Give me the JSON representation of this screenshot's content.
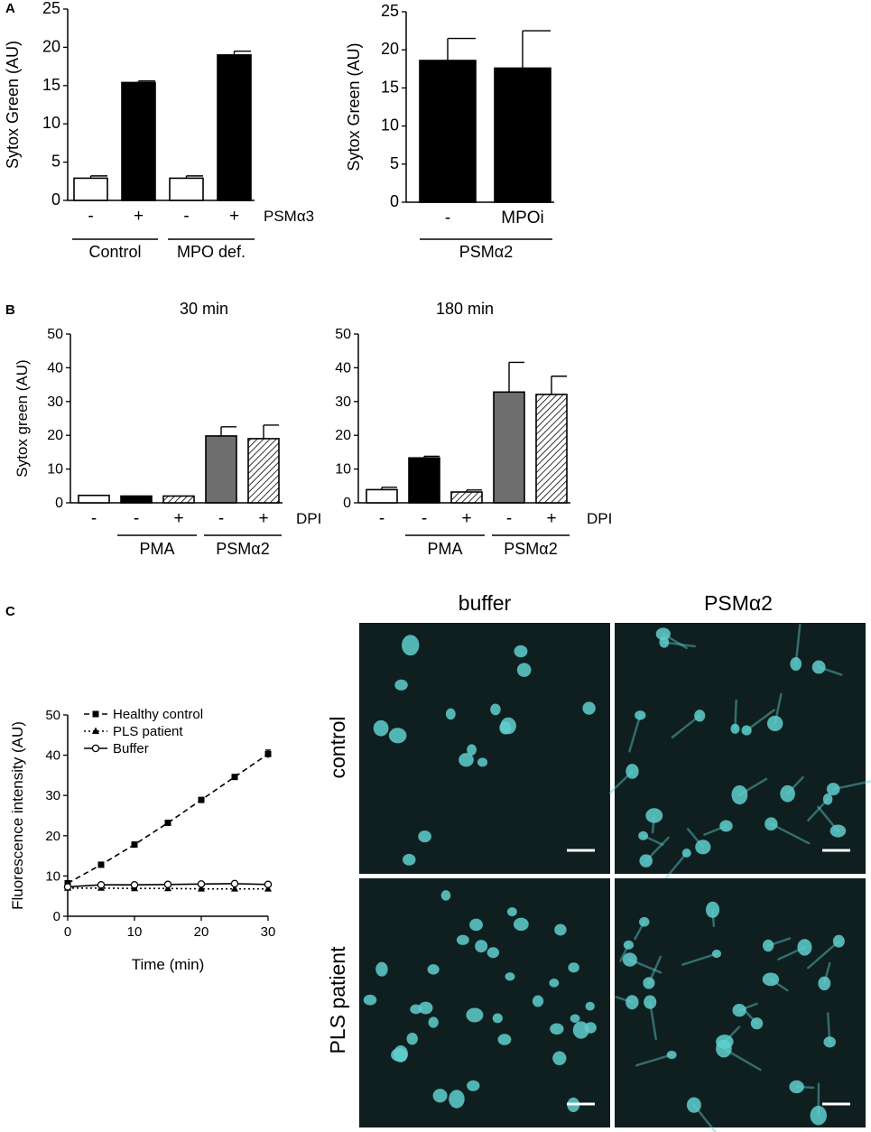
{
  "panel_letters": {
    "a": "A",
    "b": "B",
    "c": "C"
  },
  "micrograph_labels": {
    "col_buffer": "buffer",
    "col_psm": "PSMα2",
    "row_control": "control",
    "row_pls": "PLS patient"
  },
  "colors": {
    "micrograph_bg": "#0f1e1e",
    "cell": "#5fcfcf",
    "bar_white": "#ffffff",
    "bar_black": "#000000",
    "bar_gray": "#6e6e6e"
  },
  "chart_data": [
    {
      "id": "A1",
      "type": "bar",
      "ylabel": "Sytox Green (AU)",
      "ylim": [
        0,
        25
      ],
      "yticks": [
        0,
        5,
        10,
        15,
        20,
        25
      ],
      "tick_labels": [
        "-",
        "+",
        "-",
        "+"
      ],
      "row_label": "PSMα3",
      "groups": [
        "Control",
        "MPO def."
      ],
      "values": [
        2.9,
        15.4,
        2.9,
        19.0
      ],
      "errors": [
        0.3,
        0.2,
        0.3,
        0.5
      ],
      "fills": [
        "white",
        "black",
        "white",
        "black"
      ]
    },
    {
      "id": "A2",
      "type": "bar",
      "ylabel": "Sytox Green (AU)",
      "ylim": [
        0,
        25
      ],
      "yticks": [
        0,
        5,
        10,
        15,
        20,
        25
      ],
      "tick_labels": [
        "-",
        "MPOi"
      ],
      "groups": [
        "PSMα2"
      ],
      "values": [
        18.6,
        17.6
      ],
      "errors": [
        2.9,
        4.9
      ],
      "fills": [
        "black",
        "black"
      ]
    },
    {
      "id": "B1",
      "type": "bar",
      "title": "30 min",
      "ylabel": "Sytox green (AU)",
      "ylim": [
        0,
        50
      ],
      "yticks": [
        0,
        10,
        20,
        30,
        40,
        50
      ],
      "tick_labels": [
        "-",
        "-",
        "+",
        "-",
        "+"
      ],
      "row_label": "DPI",
      "groups": [
        "PMA",
        "PSMα2"
      ],
      "values": [
        2.2,
        2.0,
        2.0,
        19.8,
        19.0
      ],
      "errors": [
        0,
        0,
        0,
        2.7,
        4.0
      ],
      "fills": [
        "white",
        "black",
        "hatch",
        "gray",
        "hatch"
      ]
    },
    {
      "id": "B2",
      "type": "bar",
      "title": "180 min",
      "ylim": [
        0,
        50
      ],
      "yticks": [
        0,
        10,
        20,
        30,
        40,
        50
      ],
      "tick_labels": [
        "-",
        "-",
        "+",
        "-",
        "+"
      ],
      "row_label": "DPI",
      "groups": [
        "PMA",
        "PSMα2"
      ],
      "values": [
        3.9,
        13.3,
        3.2,
        32.8,
        32.1
      ],
      "errors": [
        0.7,
        0.5,
        0.6,
        8.8,
        5.4
      ],
      "fills": [
        "white",
        "black",
        "hatch",
        "gray",
        "hatch"
      ]
    },
    {
      "id": "C",
      "type": "line",
      "xlabel": "Time (min)",
      "ylabel": "Fluorescence intensity (AU)",
      "xlim": [
        0,
        30
      ],
      "ylim": [
        0,
        50
      ],
      "xticks": [
        0,
        10,
        20,
        30
      ],
      "yticks": [
        0,
        10,
        20,
        30,
        40,
        50
      ],
      "x": [
        0,
        5,
        10,
        15,
        20,
        25,
        30
      ],
      "legend_position": "top-left",
      "series": [
        {
          "name": "Healthy control",
          "style": "dashed",
          "marker": "square",
          "values": [
            8.2,
            12.8,
            17.8,
            23.2,
            28.9,
            34.6,
            40.3
          ],
          "errors": [
            0.3,
            0.3,
            0.3,
            0.3,
            0.5,
            0.5,
            1.0
          ]
        },
        {
          "name": "PLS patient",
          "style": "dotted",
          "marker": "triangle",
          "values": [
            7.0,
            7.0,
            6.9,
            6.9,
            6.8,
            6.8,
            6.8
          ],
          "errors": [
            0,
            0,
            0,
            0,
            0,
            0,
            0
          ]
        },
        {
          "name": "Buffer",
          "style": "solid",
          "marker": "circle",
          "values": [
            7.3,
            7.8,
            7.8,
            7.9,
            8.0,
            8.1,
            7.9
          ],
          "errors": [
            0,
            0,
            0,
            0,
            0,
            0,
            0
          ]
        }
      ]
    }
  ]
}
